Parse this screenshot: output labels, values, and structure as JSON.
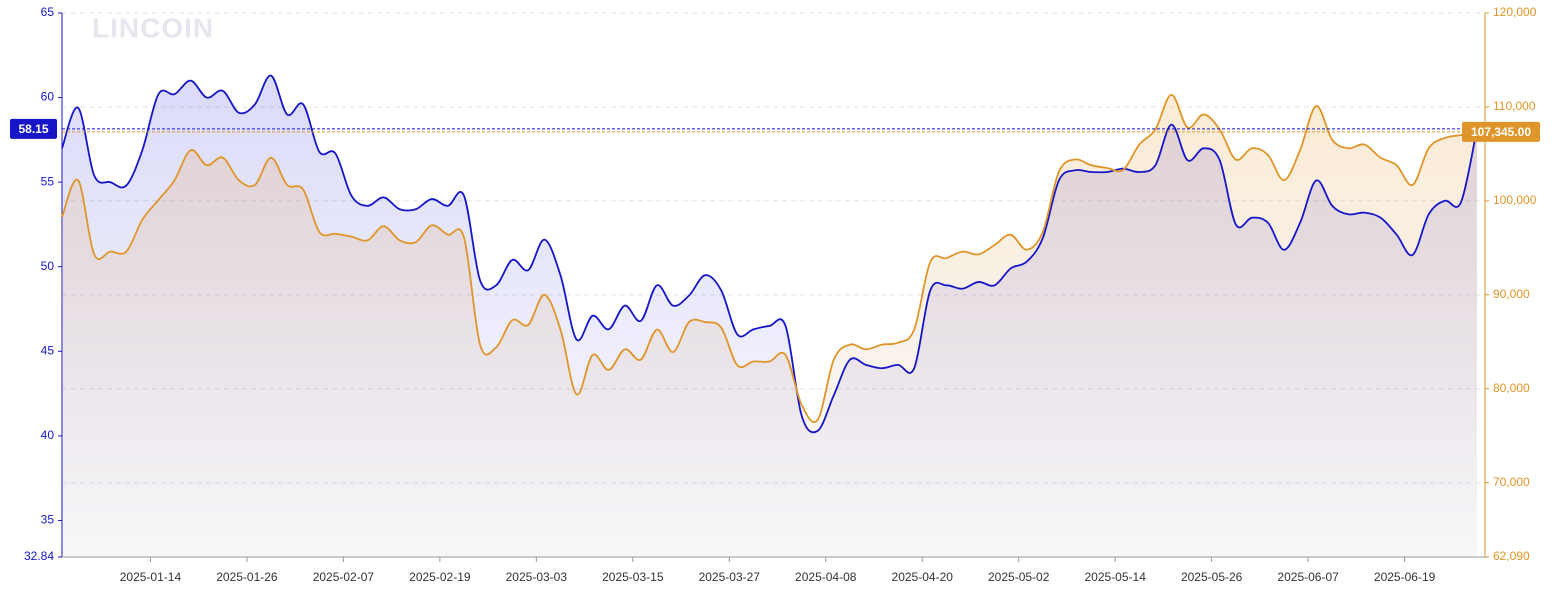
{
  "chart_data": {
    "type": "line",
    "watermark": "LINCOIN",
    "x": [
      "2025-01-03",
      "2025-01-05",
      "2025-01-07",
      "2025-01-09",
      "2025-01-11",
      "2025-01-13",
      "2025-01-15",
      "2025-01-17",
      "2025-01-19",
      "2025-01-21",
      "2025-01-23",
      "2025-01-25",
      "2025-01-27",
      "2025-01-29",
      "2025-01-31",
      "2025-02-02",
      "2025-02-04",
      "2025-02-06",
      "2025-02-08",
      "2025-02-10",
      "2025-02-12",
      "2025-02-14",
      "2025-02-16",
      "2025-02-18",
      "2025-02-20",
      "2025-02-22",
      "2025-02-24",
      "2025-02-26",
      "2025-02-28",
      "2025-03-02",
      "2025-03-04",
      "2025-03-06",
      "2025-03-08",
      "2025-03-10",
      "2025-03-12",
      "2025-03-14",
      "2025-03-16",
      "2025-03-18",
      "2025-03-20",
      "2025-03-22",
      "2025-03-24",
      "2025-03-26",
      "2025-03-28",
      "2025-03-30",
      "2025-04-01",
      "2025-04-03",
      "2025-04-05",
      "2025-04-07",
      "2025-04-09",
      "2025-04-11",
      "2025-04-13",
      "2025-04-15",
      "2025-04-17",
      "2025-04-19",
      "2025-04-21",
      "2025-04-23",
      "2025-04-25",
      "2025-04-27",
      "2025-04-29",
      "2025-05-01",
      "2025-05-03",
      "2025-05-05",
      "2025-05-07",
      "2025-05-09",
      "2025-05-11",
      "2025-05-13",
      "2025-05-15",
      "2025-05-17",
      "2025-05-19",
      "2025-05-21",
      "2025-05-23",
      "2025-05-25",
      "2025-05-27",
      "2025-05-29",
      "2025-05-31",
      "2025-06-02",
      "2025-06-04",
      "2025-06-06",
      "2025-06-08",
      "2025-06-10",
      "2025-06-12",
      "2025-06-14",
      "2025-06-16",
      "2025-06-18",
      "2025-06-20",
      "2025-06-22",
      "2025-06-24",
      "2025-06-26",
      "2025-06-28"
    ],
    "series": [
      {
        "color": "#1616c8",
        "axis": "y",
        "values": [
          57.0,
          59.4,
          55.4,
          55.0,
          54.8,
          56.9,
          60.2,
          60.2,
          61.0,
          60.0,
          60.4,
          59.1,
          59.6,
          61.3,
          59.0,
          59.6,
          56.8,
          56.7,
          54.2,
          53.6,
          54.1,
          53.4,
          53.4,
          54.0,
          53.6,
          54.2,
          49.2,
          48.9,
          50.4,
          49.8,
          51.6,
          49.5,
          45.7,
          47.1,
          46.3,
          47.7,
          46.8,
          48.9,
          47.7,
          48.3,
          49.5,
          48.6,
          46.0,
          46.3,
          46.5,
          46.5,
          41.2,
          40.3,
          42.4,
          44.5,
          44.2,
          44.0,
          44.2,
          44.0,
          48.6,
          48.9,
          48.7,
          49.1,
          48.9,
          49.9,
          50.3,
          51.7,
          55.1,
          55.7,
          55.6,
          55.6,
          55.8,
          55.6,
          56.0,
          58.4,
          56.3,
          57.0,
          56.3,
          52.5,
          52.9,
          52.6,
          51.0,
          52.6,
          55.1,
          53.6,
          53.1,
          53.2,
          52.9,
          51.9,
          50.7,
          53.1,
          53.9,
          53.8,
          58.15
        ]
      },
      {
        "color": "#e0952a",
        "axis": "y2",
        "values": [
          98300,
          102200,
          94300,
          94600,
          94600,
          98000,
          100100,
          102200,
          105400,
          103800,
          104600,
          102200,
          101700,
          104600,
          101700,
          101200,
          96700,
          96500,
          96200,
          95800,
          97300,
          95800,
          95600,
          97400,
          96400,
          96100,
          84700,
          84400,
          87300,
          86800,
          90000,
          86300,
          79400,
          83600,
          82000,
          84200,
          83100,
          86300,
          83900,
          87100,
          87100,
          86500,
          82500,
          82900,
          82900,
          83600,
          78300,
          76700,
          83100,
          84700,
          84200,
          84700,
          84900,
          86300,
          93500,
          93900,
          94600,
          94300,
          95300,
          96400,
          94800,
          96700,
          103100,
          104400,
          103800,
          103500,
          103300,
          106000,
          107600,
          111300,
          107800,
          109200,
          107600,
          104400,
          105600,
          104900,
          102200,
          105400,
          110100,
          106500,
          105600,
          106000,
          104600,
          103800,
          101700,
          105600,
          106700,
          107000,
          107345
        ]
      }
    ],
    "xlim": [
      "2025-01-03",
      "2025-06-29"
    ],
    "xticks": [
      "2025-01-14",
      "2025-01-26",
      "2025-02-07",
      "2025-02-19",
      "2025-03-03",
      "2025-03-15",
      "2025-03-27",
      "2025-04-08",
      "2025-04-20",
      "2025-05-02",
      "2025-05-14",
      "2025-05-26",
      "2025-06-07",
      "2025-06-19"
    ],
    "ylim": [
      32.84,
      65
    ],
    "yticks": [
      32.84,
      35,
      40,
      45,
      50,
      55,
      60,
      65
    ],
    "y2lim": [
      62090,
      120000
    ],
    "y2ticks": [
      {
        "value": 62090,
        "label": "62,090"
      },
      {
        "value": 70000,
        "label": "70,000"
      },
      {
        "value": 80000,
        "label": "80,000"
      },
      {
        "value": 90000,
        "label": "90,000"
      },
      {
        "value": 100000,
        "label": "100,000"
      },
      {
        "value": 110000,
        "label": "110,000"
      },
      {
        "value": 120000,
        "label": "120,000"
      }
    ],
    "grid": "y2",
    "markers": [
      {
        "axis": "y",
        "value": 58.15,
        "label": "58.15",
        "color": "#1616c8"
      },
      {
        "axis": "y2",
        "value": 107345,
        "label": "107,345.00",
        "color": "#e0952a"
      }
    ]
  }
}
